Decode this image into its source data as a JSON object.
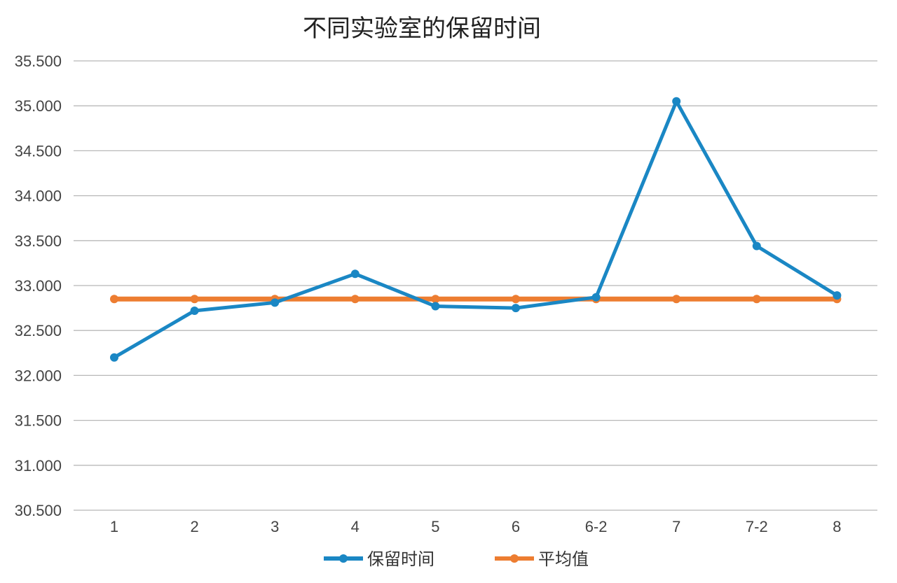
{
  "chart_data": {
    "type": "line",
    "title": "不同实验室的保留时间",
    "xlabel": "",
    "ylabel": "",
    "categories": [
      "1",
      "2",
      "3",
      "4",
      "5",
      "6",
      "6-2",
      "7",
      "7-2",
      "8"
    ],
    "ylim": [
      30.5,
      35.5
    ],
    "yticks": [
      30.5,
      31.0,
      31.5,
      32.0,
      32.5,
      33.0,
      33.5,
      34.0,
      34.5,
      35.0,
      35.5
    ],
    "ytick_labels": [
      "30.500",
      "31.000",
      "31.500",
      "32.000",
      "32.500",
      "33.000",
      "33.500",
      "34.000",
      "34.500",
      "35.000",
      "35.500"
    ],
    "grid": true,
    "legend_position": "bottom",
    "series": [
      {
        "name": "保留时间",
        "color": "#1a87c4",
        "values": [
          32.2,
          32.72,
          32.81,
          33.13,
          32.77,
          32.75,
          32.87,
          35.05,
          33.44,
          32.89
        ]
      },
      {
        "name": "平均值",
        "color": "#ed7d31",
        "values": [
          32.85,
          32.85,
          32.85,
          32.85,
          32.85,
          32.85,
          32.85,
          32.85,
          32.85,
          32.85
        ]
      }
    ]
  }
}
